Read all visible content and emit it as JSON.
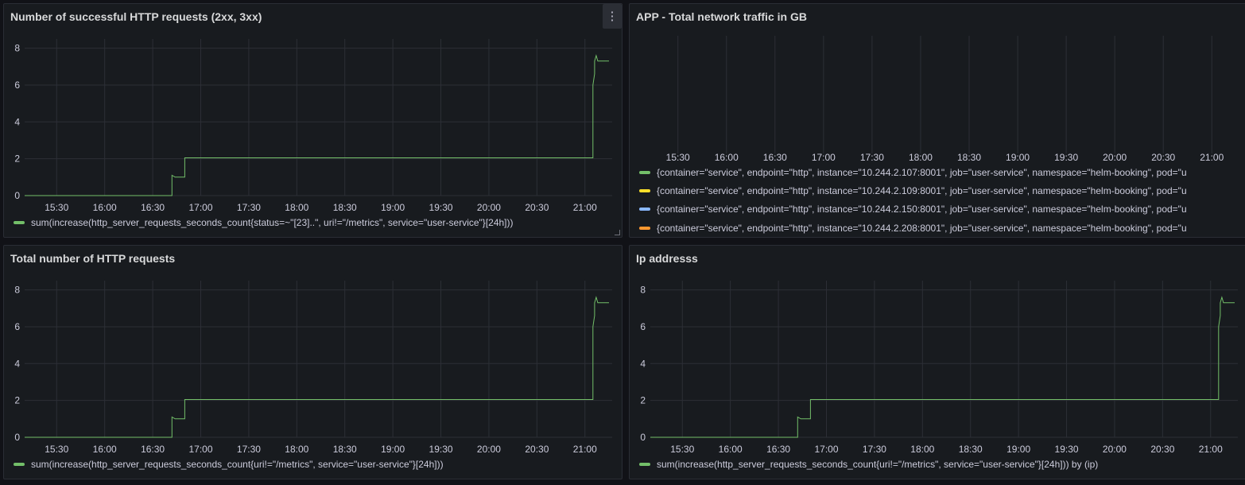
{
  "panels": [
    {
      "title": "Number of successful HTTP requests (2xx, 3xx)",
      "has_menu": true,
      "menu_icon": "⋮",
      "legend": [
        {
          "label": "sum(increase(http_server_requests_seconds_count{status=~\"[23]..\", uri!=\"/metrics\", service=\"user-service\"}[24h]))",
          "color": "#73bf69"
        }
      ]
    },
    {
      "title": "APP - Total network traffic in GB",
      "has_menu": false,
      "legend": [
        {
          "label": "{container=\"service\", endpoint=\"http\", instance=\"10.244.2.107:8001\", job=\"user-service\", namespace=\"helm-booking\", pod=\"u",
          "color": "#73bf69"
        },
        {
          "label": "{container=\"service\", endpoint=\"http\", instance=\"10.244.2.109:8001\", job=\"user-service\", namespace=\"helm-booking\", pod=\"u",
          "color": "#fade2a"
        },
        {
          "label": "{container=\"service\", endpoint=\"http\", instance=\"10.244.2.150:8001\", job=\"user-service\", namespace=\"helm-booking\", pod=\"u",
          "color": "#8ab8ff"
        },
        {
          "label": "{container=\"service\", endpoint=\"http\", instance=\"10.244.2.208:8001\", job=\"user-service\", namespace=\"helm-booking\", pod=\"u",
          "color": "#ff9830"
        }
      ]
    },
    {
      "title": "Total number of HTTP requests",
      "has_menu": false,
      "legend": [
        {
          "label": "sum(increase(http_server_requests_seconds_count{uri!=\"/metrics\", service=\"user-service\"}[24h]))",
          "color": "#73bf69"
        }
      ]
    },
    {
      "title": "Ip addresss",
      "has_menu": false,
      "legend": [
        {
          "label": "sum(increase(http_server_requests_seconds_count{uri!=\"/metrics\", service=\"user-service\"}[24h])) by (ip)",
          "color": "#73bf69"
        }
      ]
    }
  ],
  "chart_data": [
    {
      "type": "line",
      "x_ticks": [
        "15:30",
        "16:00",
        "16:30",
        "17:00",
        "17:30",
        "18:00",
        "18:30",
        "19:00",
        "19:30",
        "20:00",
        "20:30",
        "21:00"
      ],
      "y_ticks": [
        0,
        2,
        4,
        6,
        8
      ],
      "ylim": [
        0,
        8.5
      ],
      "grid": true,
      "legend_placement": "bottom",
      "series": [
        {
          "name": "sum(increase(http_server_requests_seconds_count{status=~\"[23]..\", uri!=\"/metrics\", service=\"user-service\"}[24h]))",
          "color": "#73bf69",
          "x": [
            "15:10",
            "16:38",
            "16:38",
            "16:42",
            "16:42",
            "16:44",
            "16:44",
            "16:50",
            "16:50",
            "21:05",
            "21:05",
            "21:06",
            "21:06",
            "21:07",
            "21:08",
            "21:15"
          ],
          "y": [
            0,
            0,
            0,
            0,
            1.1,
            1.0,
            1.0,
            1.0,
            2.05,
            2.05,
            6.0,
            6.6,
            7.3,
            7.6,
            7.3,
            7.3
          ]
        }
      ]
    },
    {
      "type": "line",
      "x_ticks": [
        "15:30",
        "16:00",
        "16:30",
        "17:00",
        "17:30",
        "18:00",
        "18:30",
        "19:00",
        "19:30",
        "20:00",
        "20:30",
        "21:00"
      ],
      "y_ticks": [],
      "grid": true,
      "legend_placement": "bottom",
      "series": []
    },
    {
      "type": "line",
      "x_ticks": [
        "15:30",
        "16:00",
        "16:30",
        "17:00",
        "17:30",
        "18:00",
        "18:30",
        "19:00",
        "19:30",
        "20:00",
        "20:30",
        "21:00"
      ],
      "y_ticks": [
        0,
        2,
        4,
        6,
        8
      ],
      "ylim": [
        0,
        8.5
      ],
      "grid": true,
      "legend_placement": "bottom",
      "series": [
        {
          "name": "sum(increase(http_server_requests_seconds_count{uri!=\"/metrics\", service=\"user-service\"}[24h]))",
          "color": "#73bf69",
          "x": [
            "15:10",
            "16:38",
            "16:38",
            "16:42",
            "16:42",
            "16:44",
            "16:44",
            "16:50",
            "16:50",
            "21:05",
            "21:05",
            "21:06",
            "21:06",
            "21:07",
            "21:08",
            "21:15"
          ],
          "y": [
            0,
            0,
            0,
            0,
            1.1,
            1.0,
            1.0,
            1.0,
            2.05,
            2.05,
            6.0,
            6.6,
            7.3,
            7.6,
            7.3,
            7.3
          ]
        }
      ]
    },
    {
      "type": "line",
      "x_ticks": [
        "15:30",
        "16:00",
        "16:30",
        "17:00",
        "17:30",
        "18:00",
        "18:30",
        "19:00",
        "19:30",
        "20:00",
        "20:30",
        "21:00"
      ],
      "y_ticks": [
        0,
        2,
        4,
        6,
        8
      ],
      "ylim": [
        0,
        8.5
      ],
      "grid": true,
      "legend_placement": "bottom",
      "series": [
        {
          "name": "sum(increase(http_server_requests_seconds_count{uri!=\"/metrics\", service=\"user-service\"}[24h])) by (ip)",
          "color": "#73bf69",
          "x": [
            "15:10",
            "16:38",
            "16:38",
            "16:42",
            "16:42",
            "16:44",
            "16:44",
            "16:50",
            "16:50",
            "21:05",
            "21:05",
            "21:06",
            "21:06",
            "21:07",
            "21:08",
            "21:15"
          ],
          "y": [
            0,
            0,
            0,
            0,
            1.1,
            1.0,
            1.0,
            1.0,
            2.05,
            2.05,
            6.0,
            6.6,
            7.3,
            7.6,
            7.3,
            7.3
          ]
        }
      ]
    }
  ]
}
